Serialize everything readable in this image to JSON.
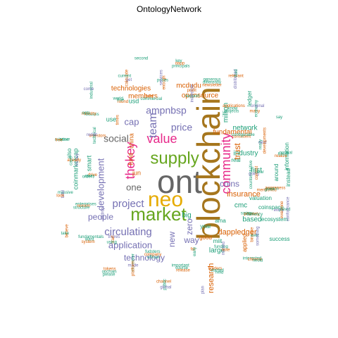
{
  "chart_data": {
    "type": "wordcloud",
    "title": "OntologyNetwork",
    "colors": {
      "teal": "#1B9E77",
      "orange": "#D95F02",
      "purple": "#7570B3",
      "magenta": "#E7298A",
      "green": "#66A61E",
      "gold": "#E6AB02",
      "brown": "#A6761D",
      "gray": "#666666"
    },
    "words": [
      {
        "text": "ont",
        "weight": 40,
        "color": "gray"
      },
      {
        "text": "blockchain",
        "weight": 40,
        "color": "brown"
      },
      {
        "text": "neo",
        "weight": 26,
        "color": "gold"
      },
      {
        "text": "market",
        "weight": 24,
        "color": "green"
      },
      {
        "text": "supply",
        "weight": 22,
        "color": "green"
      },
      {
        "text": "community",
        "weight": 17,
        "color": "magenta"
      },
      {
        "text": "thekey",
        "weight": 17,
        "color": "magenta"
      },
      {
        "text": "value",
        "weight": 16,
        "color": "magenta"
      },
      {
        "text": "team",
        "weight": 14,
        "color": "purple"
      },
      {
        "text": "circulating",
        "weight": 13,
        "color": "purple"
      },
      {
        "text": "project",
        "weight": 13,
        "color": "purple"
      },
      {
        "text": "social",
        "weight": 12,
        "color": "gray"
      },
      {
        "text": "price",
        "weight": 12,
        "color": "purple"
      },
      {
        "text": "ampnbsp",
        "weight": 12,
        "color": "purple"
      },
      {
        "text": "development",
        "weight": 11,
        "color": "purple"
      },
      {
        "text": "one",
        "weight": 11,
        "color": "gray"
      },
      {
        "text": "application",
        "weight": 11,
        "color": "purple"
      },
      {
        "text": "cap",
        "weight": 11,
        "color": "purple"
      },
      {
        "text": "technology",
        "weight": 10,
        "color": "purple"
      },
      {
        "text": "people",
        "weight": 10,
        "color": "purple"
      },
      {
        "text": "zero",
        "weight": 10,
        "color": "purple"
      },
      {
        "text": "way",
        "weight": 10,
        "color": "purple"
      },
      {
        "text": "coins",
        "weight": 10,
        "color": "purple"
      },
      {
        "text": "new",
        "weight": 10,
        "color": "purple"
      },
      {
        "text": "trust",
        "weight": 10,
        "color": "orange"
      },
      {
        "text": "research",
        "weight": 10,
        "color": "orange"
      },
      {
        "text": "dappledger",
        "weight": 9,
        "color": "orange"
      },
      {
        "text": "insurance",
        "weight": 9,
        "color": "orange"
      },
      {
        "text": "fundamental",
        "weight": 8,
        "color": "orange"
      },
      {
        "text": "opensource",
        "weight": 8,
        "color": "orange"
      },
      {
        "text": "mcdudu",
        "weight": 8,
        "color": "orange"
      },
      {
        "text": "members",
        "weight": 8,
        "color": "orange"
      },
      {
        "text": "technologies",
        "weight": 8,
        "color": "orange"
      },
      {
        "text": "network",
        "weight": 8,
        "color": "teal"
      },
      {
        "text": "industry",
        "weight": 8,
        "color": "teal"
      },
      {
        "text": "cmc",
        "weight": 8,
        "color": "teal"
      },
      {
        "text": "based",
        "weight": 8,
        "color": "teal"
      },
      {
        "text": "million",
        "weight": 8,
        "color": "teal"
      },
      {
        "text": "first",
        "weight": 8,
        "color": "teal"
      },
      {
        "text": "big",
        "weight": 8,
        "color": "teal"
      },
      {
        "text": "large",
        "weight": 8,
        "color": "teal"
      },
      {
        "text": "fund",
        "weight": 7,
        "color": "orange"
      },
      {
        "text": "china",
        "weight": 7,
        "color": "orange"
      },
      {
        "text": "jun",
        "weight": 7,
        "color": "orange"
      },
      {
        "text": "smart",
        "weight": 7,
        "color": "teal"
      },
      {
        "text": "use",
        "weight": 7,
        "color": "teal"
      },
      {
        "text": "usd",
        "weight": 7,
        "color": "teal"
      },
      {
        "text": "coinmarketcap",
        "weight": 7,
        "color": "teal"
      },
      {
        "text": "also",
        "weight": 7,
        "color": "teal"
      },
      {
        "text": "around",
        "weight": 7,
        "color": "teal"
      },
      {
        "text": "ledger",
        "weight": 7,
        "color": "teal"
      },
      {
        "text": "real",
        "weight": 7,
        "color": "teal"
      },
      {
        "text": "valuation",
        "weight": 7,
        "color": "teal"
      },
      {
        "text": "coinspace",
        "weight": 7,
        "color": "teal"
      },
      {
        "text": "ecosystem",
        "weight": 7,
        "color": "teal"
      },
      {
        "text": "information",
        "weight": 7,
        "color": "teal"
      },
      {
        "text": "instead",
        "weight": 7,
        "color": "teal"
      },
      {
        "text": "success",
        "weight": 7,
        "color": "teal"
      },
      {
        "text": "applied",
        "weight": 7,
        "color": "orange"
      },
      {
        "text": "good",
        "weight": 7,
        "color": "orange"
      },
      {
        "text": "miit",
        "weight": 7,
        "color": "teal"
      },
      {
        "text": "ama",
        "weight": 7,
        "color": "teal"
      },
      {
        "text": "year",
        "weight": 7,
        "color": "teal"
      }
    ],
    "small_words": [
      "counterintuitive",
      "mentioned",
      "every",
      "savvy",
      "binance",
      "interested",
      "funding",
      "holders",
      "plan",
      "important",
      "channel",
      "fudsters",
      "moreover",
      "tokens",
      "theres",
      "fundamentals",
      "believe",
      "enterprises",
      "massive",
      "drive",
      "money",
      "serve",
      "investors",
      "focuses",
      "industrial",
      "round",
      "get",
      "second",
      "enough",
      "principals",
      "support",
      "newsletter",
      "distributed",
      "projects",
      "many",
      "say",
      "really",
      "realize",
      "going",
      "given",
      "everyone",
      "since",
      "ever",
      "chinese",
      "missed",
      "started",
      "far",
      "course",
      "public",
      "company",
      "made",
      "onchain",
      "start",
      "want",
      "take",
      "reason",
      "total",
      "away",
      "already",
      "relative",
      "technical",
      "ministry",
      "come",
      "true",
      "calculate",
      "commercial",
      "prices",
      "dapp",
      "incredible",
      "differently",
      "relevant",
      "know",
      "economy",
      "consistent",
      "next",
      "future",
      "contest",
      "means",
      "joined",
      "privately",
      "something",
      "neoid",
      "note",
      "held",
      "early",
      "release",
      "global",
      "official",
      "platform",
      "please",
      "using",
      "system",
      "airdrop",
      "structure",
      "look",
      "order",
      "caps",
      "free",
      "reddit",
      "onts",
      "times",
      "world",
      "current",
      "ever",
      "services",
      "key",
      "profit",
      "generous",
      "fluid",
      "applications",
      "original",
      "configurable",
      "developments",
      "normal",
      "clear",
      "awareness",
      "conformance",
      "currency"
    ]
  }
}
